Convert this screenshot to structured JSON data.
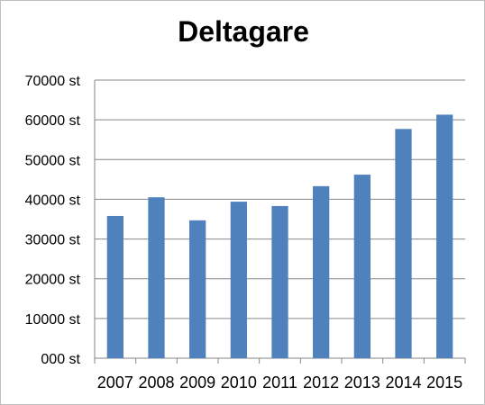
{
  "chart_data": {
    "type": "bar",
    "title": "Deltagare",
    "xlabel": "",
    "ylabel": "",
    "categories": [
      "2007",
      "2008",
      "2009",
      "2010",
      "2011",
      "2012",
      "2013",
      "2014",
      "2015"
    ],
    "values": [
      35800,
      40500,
      34700,
      39400,
      38300,
      43300,
      46200,
      57700,
      61300
    ],
    "ylim": [
      0,
      70000
    ],
    "yticks": [
      0,
      10000,
      20000,
      30000,
      40000,
      50000,
      60000,
      70000
    ],
    "ytick_labels": [
      "000 st",
      "10000 st",
      "20000 st",
      "30000 st",
      "40000 st",
      "50000 st",
      "60000 st",
      "70000 st"
    ],
    "grid": true,
    "legend": "none",
    "bar_color": "#4f81bd",
    "grid_color": "#868686"
  }
}
